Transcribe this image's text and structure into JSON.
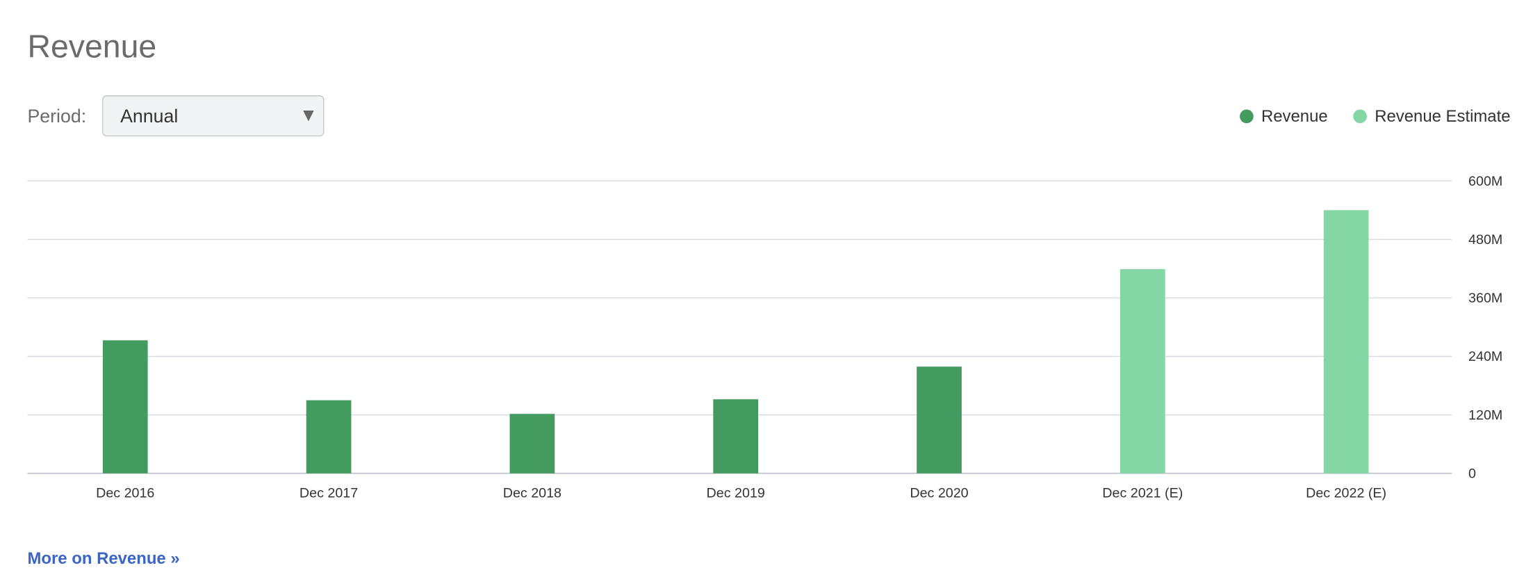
{
  "chart_data": {
    "type": "bar",
    "title": "Revenue",
    "period_label": "Period:",
    "period_value": "Annual",
    "categories": [
      "Dec 2016",
      "Dec 2017",
      "Dec 2018",
      "Dec 2019",
      "Dec 2020",
      "Dec 2021 (E)",
      "Dec 2022 (E)"
    ],
    "series": [
      {
        "name": "Revenue",
        "color": "#449b5f",
        "values": [
          273,
          150,
          122,
          152,
          219,
          null,
          null
        ]
      },
      {
        "name": "Revenue Estimate",
        "color": "#85d6a5",
        "values": [
          null,
          null,
          null,
          null,
          null,
          419,
          540
        ]
      }
    ],
    "ylim": [
      0,
      600
    ],
    "yticks": [
      0,
      {
        "value": 120,
        "label": "120M"
      },
      {
        "value": 240,
        "label": "240M"
      },
      {
        "value": 360,
        "label": "360M"
      },
      {
        "value": 480,
        "label": "480M"
      },
      {
        "value": 600,
        "label": "600M"
      }
    ],
    "grid": true,
    "legend": "top-right",
    "link": "More on Revenue »"
  }
}
